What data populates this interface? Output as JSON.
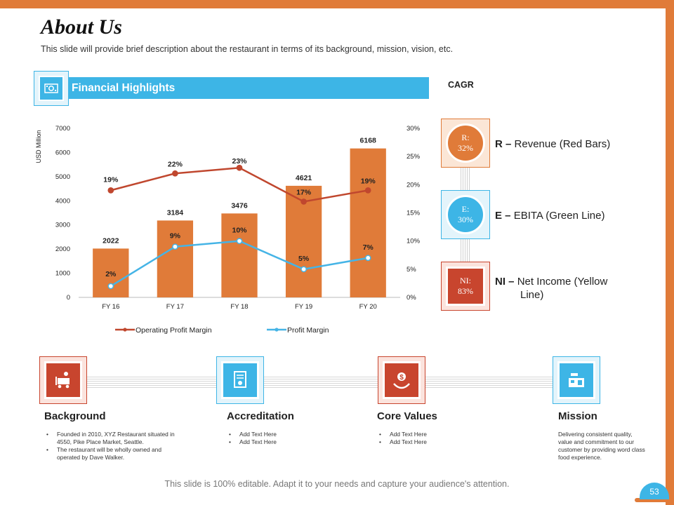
{
  "title": "About Us",
  "subtitle": "This slide will provide brief description about the restaurant in terms of its background, mission, vision, etc.",
  "financial": {
    "label": "Financial Highlights",
    "icon": "money-icon"
  },
  "cagr": {
    "label": "CAGR",
    "items": [
      {
        "badge_key": "R:",
        "badge_value": "32%",
        "key": "R –",
        "desc": "Revenue (Red Bars)",
        "color": "#E07B39"
      },
      {
        "badge_key": "E:",
        "badge_value": "30%",
        "key": "E –",
        "desc": "EBITA (Green Line)",
        "color": "#3DB5E6"
      },
      {
        "badge_key": "NI:",
        "badge_value": "83%",
        "key": "NI –",
        "desc": "Net Income (Yellow",
        "desc2": "Line)",
        "color": "#C8452E"
      }
    ]
  },
  "chart_data": {
    "type": "bar",
    "categories": [
      "FY 16",
      "FY 17",
      "FY 18",
      "FY 19",
      "FY 20"
    ],
    "ylabel": "USD Million",
    "ylim": [
      0,
      7000
    ],
    "y_ticks": [
      "0",
      "1000",
      "2000",
      "3000",
      "4000",
      "5000",
      "6000",
      "7000"
    ],
    "y2lim": [
      0,
      30
    ],
    "y2_ticks": [
      "0%",
      "5%",
      "10%",
      "15%",
      "20%",
      "25%",
      "30%"
    ],
    "bar_values": [
      2022,
      3184,
      3476,
      4621,
      6168
    ],
    "bar_color": "#E07B39",
    "series": [
      {
        "name": "Operating Profit Margin",
        "axis": "secondary",
        "color": "#C0472E",
        "values": [
          19,
          22,
          23,
          17,
          19
        ],
        "labels": [
          "19%",
          "22%",
          "23%",
          "17%",
          "19%"
        ]
      },
      {
        "name": "Profit Margin",
        "axis": "secondary",
        "color": "#45B4E6",
        "values": [
          2,
          9,
          10,
          5,
          7
        ],
        "labels": [
          "2%",
          "9%",
          "10%",
          "5%",
          "7%"
        ]
      }
    ]
  },
  "features": [
    {
      "title": "Background",
      "icon": "chef-cart-icon",
      "color": "#C8452E",
      "light": "#FBE3DD",
      "items": [
        "Founded in 2010, XYZ Restaurant situated in 4550, Pike Place Market, Seattle.",
        "The restaurant will be wholly owned and operated by Dave Walker."
      ]
    },
    {
      "title": "Accreditation",
      "icon": "certificate-icon",
      "color": "#3DB5E6",
      "light": "#E3F4FB",
      "items": [
        "Add Text Here",
        "Add Text Here"
      ]
    },
    {
      "title": "Core Values",
      "icon": "hands-dollar-icon",
      "color": "#C8452E",
      "light": "#FBE3DD",
      "items": [
        "Add Text Here",
        "Add Text Here"
      ]
    },
    {
      "title": "Mission",
      "icon": "kitchen-icon",
      "color": "#3DB5E6",
      "light": "#E3F4FB",
      "text": "Delivering consistent quality, value and commitment to our customer by providing word class food experience."
    }
  ],
  "footer": "This slide is 100% editable. Adapt it to your needs and capture your audience's attention.",
  "page_number": "53"
}
